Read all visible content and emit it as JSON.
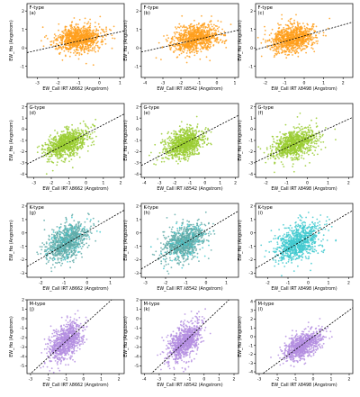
{
  "figure": {
    "panel_types": [
      "F-type",
      "G-type",
      "K-type",
      "M-type"
    ],
    "panel_letters": [
      [
        "(a)",
        "(b)",
        "(c)"
      ],
      [
        "(d)",
        "(e)",
        "(f)"
      ],
      [
        "(g)",
        "(h)",
        "(i)"
      ],
      [
        "(j)",
        "(k)",
        "(l)"
      ]
    ],
    "ylabel": "EW_Hα (Angstrom)",
    "xlabels": [
      "EW_CaII IRT λ8662 (Angstrom)",
      "EW_CaII IRT λ8542 (Angstrom)",
      "EW_CaII IRT λ8498 (Angstrom)"
    ],
    "colors": {
      "F": "#ff9f1c",
      "G": "#9acd32",
      "K_dark": "#5faaa8",
      "K_light": "#3fc9cf",
      "M": "#b48ee0",
      "fit_line": "#000000"
    }
  },
  "chart_data": [
    {
      "type": "scatter",
      "panel": "(a)",
      "title": "F-type",
      "xlabel": "EW_CaII IRT λ8662 (Angstrom)",
      "ylabel": "EW_Hα (Angstrom)",
      "xlim": [
        -3.5,
        1.2
      ],
      "ylim": [
        -1.6,
        2.4
      ],
      "xticks": [
        -3,
        -2,
        -1,
        0,
        1
      ],
      "yticks": [
        "-1",
        "0",
        "1",
        "2"
      ],
      "center": [
        -1.0,
        0.5
      ],
      "spread": [
        0.55,
        0.45
      ],
      "fit": {
        "slope": 0.25,
        "intercept": 0.62
      },
      "color": "#ff9f1c"
    },
    {
      "type": "scatter",
      "panel": "(b)",
      "title": "F-type",
      "xlabel": "EW_CaII IRT λ8542 (Angstrom)",
      "ylabel": "EW_Hα (Angstrom)",
      "xlim": [
        -4.2,
        1.2
      ],
      "ylim": [
        -1.6,
        2.4
      ],
      "xticks": [
        -4,
        -3,
        -2,
        -1,
        0,
        1
      ],
      "yticks": [
        "-1",
        "0",
        "1",
        "2"
      ],
      "center": [
        -1.2,
        0.5
      ],
      "spread": [
        0.65,
        0.45
      ],
      "fit": {
        "slope": 0.22,
        "intercept": 0.7
      },
      "color": "#ff9f1c"
    },
    {
      "type": "scatter",
      "panel": "(c)",
      "title": "F-type",
      "xlabel": "EW_CaII IRT λ8498 (Angstrom)",
      "ylabel": "EW_Hα (Angstrom)",
      "xlim": [
        -2.5,
        2.5
      ],
      "ylim": [
        -1.6,
        2.4
      ],
      "xticks": [
        -2,
        -1,
        0,
        1,
        2
      ],
      "yticks": [
        "-1",
        "0",
        "1",
        "2"
      ],
      "center": [
        -0.6,
        0.5
      ],
      "spread": [
        0.55,
        0.45
      ],
      "fit": {
        "slope": 0.3,
        "intercept": 0.65
      },
      "color": "#ff9f1c"
    },
    {
      "type": "scatter",
      "panel": "(d)",
      "title": "G-type",
      "xlabel": "EW_CaII IRT λ8662 (Angstrom)",
      "ylabel": "EW_Hα (Angstrom)",
      "xlim": [
        -3.4,
        2.2
      ],
      "ylim": [
        -4.3,
        2.3
      ],
      "xticks": [
        -3,
        -2,
        -1,
        0,
        1,
        2
      ],
      "yticks": [
        "-4",
        "-3",
        "-2",
        "-1",
        "0",
        "1",
        "2"
      ],
      "center": [
        -1.1,
        -1.3
      ],
      "spread": [
        0.6,
        0.75
      ],
      "fit": {
        "slope": 0.8,
        "intercept": -0.4
      },
      "color": "#9acd32"
    },
    {
      "type": "scatter",
      "panel": "(e)",
      "title": "G-type",
      "xlabel": "EW_CaII IRT λ8542 (Angstrom)",
      "ylabel": "EW_Hα (Angstrom)",
      "xlim": [
        -4.2,
        2.2
      ],
      "ylim": [
        -4.3,
        2.3
      ],
      "xticks": [
        -4,
        -3,
        -2,
        -1,
        0,
        1,
        2
      ],
      "yticks": [
        "-4",
        "-3",
        "-2",
        "-1",
        "0",
        "1",
        "2"
      ],
      "center": [
        -1.4,
        -1.3
      ],
      "spread": [
        0.65,
        0.75
      ],
      "fit": {
        "slope": 0.7,
        "intercept": -0.3
      },
      "color": "#9acd32"
    },
    {
      "type": "scatter",
      "panel": "(f)",
      "title": "G-type",
      "xlabel": "EW_CaII IRT λ8498 (Angstrom)",
      "ylabel": "EW_Hα (Angstrom)",
      "xlim": [
        -2.5,
        2.2
      ],
      "ylim": [
        -4.3,
        2.3
      ],
      "xticks": [
        -2,
        -1,
        0,
        1,
        2
      ],
      "yticks": [
        "-4",
        "-3",
        "-2",
        "-1",
        "0",
        "1",
        "2"
      ],
      "center": [
        -0.6,
        -1.3
      ],
      "spread": [
        0.55,
        0.75
      ],
      "fit": {
        "slope": 0.85,
        "intercept": -0.8
      },
      "color": "#9acd32"
    },
    {
      "type": "scatter",
      "panel": "(g)",
      "title": "K-type",
      "xlabel": "EW_CaII IRT λ8662 (Angstrom)",
      "ylabel": "EW_Hα (Angstrom)",
      "xlim": [
        -2.6,
        1.6
      ],
      "ylim": [
        -3.3,
        2.2
      ],
      "xticks": [
        -2,
        -1,
        0,
        1
      ],
      "yticks": [
        "-3",
        "-2",
        "-1",
        "0",
        "1",
        "2"
      ],
      "center": [
        -0.9,
        -0.7
      ],
      "spread": [
        0.45,
        0.8
      ],
      "fit": {
        "slope": 1.0,
        "intercept": 0.1
      },
      "color": "#5faaa8"
    },
    {
      "type": "scatter",
      "panel": "(h)",
      "title": "K-type",
      "xlabel": "EW_CaII IRT λ8542 (Angstrom)",
      "ylabel": "EW_Hα (Angstrom)",
      "xlim": [
        -3.2,
        1.6
      ],
      "ylim": [
        -3.3,
        2.2
      ],
      "xticks": [
        -3,
        -2,
        -1,
        0,
        1
      ],
      "yticks": [
        "-3",
        "-2",
        "-1",
        "0",
        "1",
        "2"
      ],
      "center": [
        -1.1,
        -0.7
      ],
      "spread": [
        0.5,
        0.8
      ],
      "fit": {
        "slope": 0.9,
        "intercept": 0.2
      },
      "color": "#5faaa8"
    },
    {
      "type": "scatter",
      "panel": "(i)",
      "title": "K-type",
      "xlabel": "EW_CaII IRT λ8498 (Angstrom)",
      "ylabel": "EW_Hα (Angstrom)",
      "xlim": [
        -2.6,
        2.2
      ],
      "ylim": [
        -3.3,
        2.2
      ],
      "xticks": [
        -2,
        -1,
        0,
        1,
        2
      ],
      "yticks": [
        "-3",
        "-2",
        "-1",
        "0",
        "1",
        "2"
      ],
      "center": [
        -0.5,
        -0.7
      ],
      "spread": [
        0.55,
        0.8
      ],
      "fit": {
        "slope": 0.9,
        "intercept": -0.3
      },
      "color": "#3fc9cf"
    },
    {
      "type": "scatter",
      "panel": "(j)",
      "title": "M-type",
      "xlabel": "EW_CaII IRT λ8662 (Angstrom)",
      "ylabel": "EW_Hα (Angstrom)",
      "xlim": [
        -3.2,
        2.3
      ],
      "ylim": [
        -5.8,
        2.0
      ],
      "xticks": [
        -3,
        -2,
        -1,
        0,
        1,
        2
      ],
      "yticks": [
        "-5",
        "-4",
        "-3",
        "-2",
        "-1",
        "0",
        "1",
        "2"
      ],
      "center": [
        -1.0,
        -2.4
      ],
      "spread": [
        0.45,
        1.1
      ],
      "fit": {
        "slope": 1.7,
        "intercept": -0.7
      },
      "color": "#b48ee0"
    },
    {
      "type": "scatter",
      "panel": "(k)",
      "title": "M-type",
      "xlabel": "EW_CaII IRT λ8542 (Angstrom)",
      "ylabel": "EW_Hα (Angstrom)",
      "xlim": [
        -4.2,
        2.3
      ],
      "ylim": [
        -5.8,
        2.0
      ],
      "xticks": [
        -4,
        -3,
        -2,
        -1,
        0,
        1,
        2
      ],
      "yticks": [
        "-5",
        "-4",
        "-3",
        "-2",
        "-1",
        "0",
        "1",
        "2"
      ],
      "center": [
        -1.3,
        -2.4
      ],
      "spread": [
        0.55,
        1.1
      ],
      "fit": {
        "slope": 1.5,
        "intercept": -0.5
      },
      "color": "#b48ee0"
    },
    {
      "type": "scatter",
      "panel": "(l)",
      "title": "M-type",
      "xlabel": "EW_CaII IRT λ8498 (Angstrom)",
      "ylabel": "EW_Hα (Angstrom)",
      "xlim": [
        -3.2,
        2.2
      ],
      "ylim": [
        -4.2,
        4.2
      ],
      "xticks": [
        -3,
        -2,
        -1,
        0,
        1,
        2
      ],
      "yticks": [
        "-4",
        "-3",
        "-2",
        "-1",
        "0",
        "1",
        "2",
        "3",
        "4"
      ],
      "center": [
        -0.6,
        -1.0
      ],
      "spread": [
        0.5,
        0.9
      ],
      "fit": {
        "slope": 1.5,
        "intercept": 0.0
      },
      "color": "#b48ee0"
    }
  ]
}
